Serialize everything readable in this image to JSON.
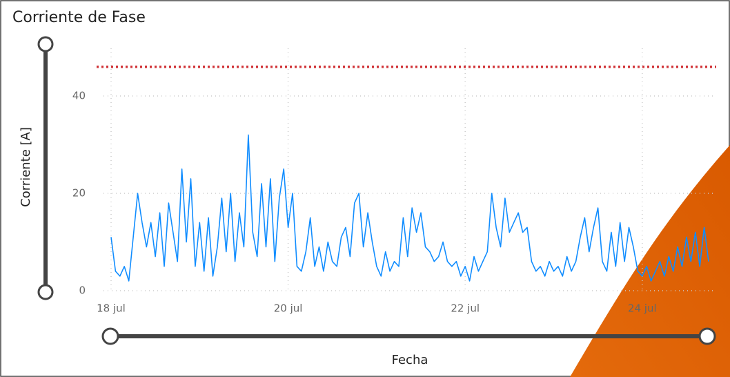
{
  "chart_data": {
    "type": "line",
    "title": "Corriente de Fase",
    "y_label": "Corriente [A]",
    "x_label": "Fecha",
    "x": [
      18,
      18.05,
      18.1,
      18.15,
      18.2,
      18.25,
      18.3,
      18.35,
      18.4,
      18.45,
      18.5,
      18.55,
      18.6,
      18.65,
      18.7,
      18.75,
      18.8,
      18.85,
      18.9,
      18.95,
      19,
      19.05,
      19.1,
      19.15,
      19.2,
      19.25,
      19.3,
      19.35,
      19.4,
      19.45,
      19.5,
      19.55,
      19.6,
      19.65,
      19.7,
      19.75,
      19.8,
      19.85,
      19.9,
      19.95,
      20,
      20.05,
      20.1,
      20.15,
      20.2,
      20.25,
      20.3,
      20.35,
      20.4,
      20.45,
      20.5,
      20.55,
      20.6,
      20.65,
      20.7,
      20.75,
      20.8,
      20.85,
      20.9,
      20.95,
      21,
      21.05,
      21.1,
      21.15,
      21.2,
      21.25,
      21.3,
      21.35,
      21.4,
      21.45,
      21.5,
      21.55,
      21.6,
      21.65,
      21.7,
      21.75,
      21.8,
      21.85,
      21.9,
      21.95,
      22,
      22.05,
      22.1,
      22.15,
      22.2,
      22.25,
      22.3,
      22.35,
      22.4,
      22.45,
      22.5,
      22.55,
      22.6,
      22.65,
      22.7,
      22.75,
      22.8,
      22.85,
      22.9,
      22.95,
      23,
      23.05,
      23.1,
      23.15,
      23.2,
      23.25,
      23.3,
      23.35,
      23.4,
      23.45,
      23.5,
      23.55,
      23.6,
      23.65,
      23.7,
      23.75,
      23.8,
      23.85,
      23.9,
      23.95,
      24,
      24.05,
      24.1,
      24.15,
      24.2,
      24.25,
      24.3,
      24.35,
      24.4,
      24.45,
      24.5,
      24.55,
      24.6,
      24.65,
      24.7,
      24.75
    ],
    "series": [
      {
        "color": "#118dff",
        "values": [
          11,
          4,
          3,
          5,
          2,
          11,
          20,
          14,
          9,
          14,
          7,
          16,
          5,
          18,
          12,
          6,
          25,
          10,
          23,
          5,
          14,
          4,
          15,
          3,
          9,
          19,
          8,
          20,
          6,
          16,
          9,
          32,
          12,
          7,
          22,
          9,
          23,
          6,
          19,
          25,
          13,
          20,
          5,
          4,
          8,
          15,
          5,
          9,
          4,
          10,
          6,
          5,
          11,
          13,
          7,
          18,
          20,
          9,
          16,
          10,
          5,
          3,
          8,
          4,
          6,
          5,
          15,
          7,
          17,
          12,
          16,
          9,
          8,
          6,
          7,
          10,
          6,
          5,
          6,
          3,
          5,
          2,
          7,
          4,
          6,
          8,
          20,
          13,
          9,
          19,
          12,
          14,
          16,
          12,
          13,
          6,
          4,
          5,
          3,
          6,
          4,
          5,
          3,
          7,
          4,
          6,
          11,
          15,
          8,
          13,
          17,
          6,
          4,
          12,
          5,
          14,
          6,
          13,
          9,
          4,
          3,
          5,
          2,
          4,
          6,
          3,
          7,
          4,
          9,
          5,
          11,
          6,
          12,
          5,
          13,
          6
        ]
      }
    ],
    "reference_line": {
      "value": 46,
      "color": "#d13438"
    },
    "xlim": [
      18,
      24.75
    ],
    "ylim": [
      0,
      51
    ],
    "xticks": [
      {
        "value": 18,
        "label": "18 jul"
      },
      {
        "value": 20,
        "label": "20 jul"
      },
      {
        "value": 22,
        "label": "22 jul"
      },
      {
        "value": 24,
        "label": "24 jul"
      }
    ],
    "yticks": [
      0,
      20,
      40
    ],
    "grid": true
  }
}
